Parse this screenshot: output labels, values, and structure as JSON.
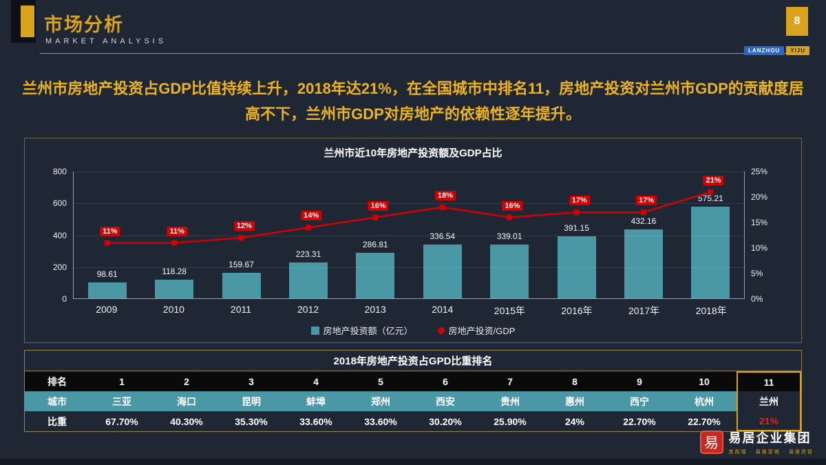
{
  "theme": {
    "background": "#202734",
    "gold": "#d9a41c",
    "teal": "#4a98a6",
    "red": "#d40000",
    "headline_gold": "#eeb41d"
  },
  "header": {
    "title": "市场分析",
    "subtitle": "MARKET ANALYSIS",
    "page_number": "8",
    "chips": [
      {
        "label": "LANZHOU"
      },
      {
        "label": "YIJU"
      }
    ]
  },
  "headline": {
    "text": "兰州市房地产投资占GDP比值持续上升，2018年达21%，在全国城市中排名11，房地产投资对兰州市GDP的贡献度居高不下，兰州市GDP对房地产的依赖性逐年提升。"
  },
  "chart_data": {
    "type": "bar",
    "subtype": "combo-bar-line",
    "title": "兰州市近10年房地产投资额及GDP占比",
    "categories": [
      "2009",
      "2010",
      "2011",
      "2012",
      "2013",
      "2014",
      "2015年",
      "2016年",
      "2017年",
      "2018年"
    ],
    "series": [
      {
        "name": "房地产投资额（亿元）",
        "type": "bar",
        "axis": "left",
        "values": [
          98.61,
          118.28,
          159.67,
          223.31,
          286.81,
          336.54,
          339.01,
          391.15,
          432.16,
          575.21
        ],
        "labels": [
          "98.61",
          "118.28",
          "159.67",
          "223.31",
          "286.81",
          "336.54",
          "339.01",
          "391.15",
          "432.16",
          "575.21"
        ]
      },
      {
        "name": "房地产投资/GDP",
        "type": "line",
        "axis": "right",
        "values": [
          11,
          11,
          12,
          14,
          16,
          18,
          16,
          17,
          17,
          21
        ],
        "labels": [
          "11%",
          "11%",
          "12%",
          "14%",
          "16%",
          "18%",
          "16%",
          "17%",
          "17%",
          "21%"
        ]
      }
    ],
    "left_axis": {
      "min": 0,
      "max": 800,
      "ticks": [
        "800",
        "600",
        "400",
        "200",
        "0"
      ]
    },
    "right_axis": {
      "min": 0,
      "max": 25,
      "ticks": [
        "25%",
        "20%",
        "15%",
        "10%",
        "5%",
        "0%"
      ]
    },
    "grid": true,
    "legend_position": "bottom"
  },
  "table": {
    "title": "2018年房地产投资占GPD比重排名",
    "highlight_col_index": 11,
    "rows": [
      {
        "header": "排名",
        "cells": [
          "1",
          "2",
          "3",
          "4",
          "5",
          "6",
          "7",
          "8",
          "9",
          "10",
          "11"
        ]
      },
      {
        "header": "城市",
        "cells": [
          "三亚",
          "海口",
          "昆明",
          "蚌埠",
          "郑州",
          "西安",
          "贵州",
          "惠州",
          "西宁",
          "杭州",
          "兰州"
        ]
      },
      {
        "header": "比重",
        "cells": [
          "67.70%",
          "40.30%",
          "35.30%",
          "33.60%",
          "33.60%",
          "30.20%",
          "25.90%",
          "24%",
          "22.70%",
          "22.70%",
          "21%"
        ]
      }
    ]
  },
  "footer": {
    "seal_char": "易",
    "logo_text": "易居企业集团",
    "tagline": "克而瑞 · 易居营销 · 易居资管"
  }
}
